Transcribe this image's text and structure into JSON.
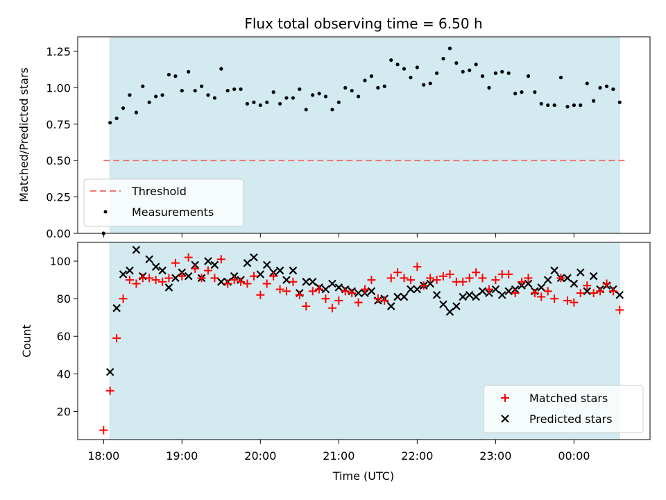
{
  "chart_data": [
    {
      "type": "scatter",
      "title": "Flux total observing time = 6.50 h",
      "ylabel": "Matched/Predicted stars",
      "xlabel": "",
      "x_unit": "hours since 18:00 UTC",
      "xlim": [
        -0.33,
        6.97
      ],
      "ylim": [
        0.0,
        1.35
      ],
      "y_ticks": [
        "0.00",
        "0.25",
        "0.50",
        "0.75",
        "1.00",
        "1.25"
      ],
      "shaded_region": [
        0.08,
        6.58
      ],
      "shade_color": "#d3eaf0",
      "threshold": {
        "name": "Threshold",
        "value": 0.5,
        "color": "#f07575"
      },
      "legend_position": "lower-left",
      "series": [
        {
          "name": "Measurements",
          "color": "#000000",
          "x": [
            0.0,
            0.083,
            0.167,
            0.25,
            0.333,
            0.417,
            0.5,
            0.583,
            0.667,
            0.75,
            0.833,
            0.917,
            1.0,
            1.083,
            1.167,
            1.25,
            1.333,
            1.417,
            1.5,
            1.583,
            1.667,
            1.75,
            1.833,
            1.917,
            2.0,
            2.083,
            2.167,
            2.25,
            2.333,
            2.417,
            2.5,
            2.583,
            2.667,
            2.75,
            2.833,
            2.917,
            3.0,
            3.083,
            3.167,
            3.25,
            3.333,
            3.417,
            3.5,
            3.583,
            3.667,
            3.75,
            3.833,
            3.917,
            4.0,
            4.083,
            4.167,
            4.25,
            4.333,
            4.417,
            4.5,
            4.583,
            4.667,
            4.75,
            4.833,
            4.917,
            5.0,
            5.083,
            5.167,
            5.25,
            5.333,
            5.417,
            5.5,
            5.583,
            5.667,
            5.75,
            5.833,
            5.917,
            6.0,
            6.083,
            6.167,
            6.25,
            6.333,
            6.417,
            6.5,
            6.583
          ],
          "y": [
            0.0,
            0.76,
            0.79,
            0.86,
            0.95,
            0.83,
            1.01,
            0.9,
            0.94,
            0.95,
            1.09,
            1.08,
            0.98,
            1.11,
            0.98,
            1.01,
            0.95,
            0.93,
            1.13,
            0.98,
            0.99,
            0.99,
            0.89,
            0.9,
            0.88,
            0.9,
            0.97,
            0.89,
            0.93,
            0.93,
            0.99,
            0.85,
            0.95,
            0.96,
            0.94,
            0.85,
            0.9,
            1.0,
            0.98,
            0.94,
            1.05,
            1.08,
            1.0,
            1.01,
            1.19,
            1.16,
            1.13,
            1.07,
            1.14,
            1.02,
            1.03,
            1.1,
            1.2,
            1.27,
            1.17,
            1.11,
            1.12,
            1.16,
            1.08,
            1.0,
            1.1,
            1.11,
            1.1,
            0.96,
            0.97,
            1.08,
            0.97,
            0.89,
            0.88,
            0.88,
            1.07,
            0.87,
            0.88,
            0.88,
            1.03,
            0.91,
            1.0,
            1.01,
            0.99,
            0.9
          ]
        }
      ]
    },
    {
      "type": "scatter",
      "title": "",
      "ylabel": "Count",
      "xlabel": "Time (UTC)",
      "x_unit": "hours since 18:00 UTC",
      "xlim": [
        -0.33,
        6.97
      ],
      "ylim": [
        5,
        110
      ],
      "y_ticks": [
        "20",
        "40",
        "60",
        "80",
        "100"
      ],
      "x_ticks": [
        "18:00",
        "19:00",
        "20:00",
        "21:00",
        "22:00",
        "23:00",
        "00:00"
      ],
      "shaded_region": [
        0.08,
        6.58
      ],
      "shade_color": "#d3eaf0",
      "legend_position": "lower-right",
      "series": [
        {
          "name": "Matched stars",
          "marker": "plus",
          "color": "#ff0000",
          "x": [
            0.0,
            0.083,
            0.167,
            0.25,
            0.333,
            0.417,
            0.5,
            0.583,
            0.667,
            0.75,
            0.833,
            0.917,
            1.0,
            1.083,
            1.167,
            1.25,
            1.333,
            1.417,
            1.5,
            1.583,
            1.667,
            1.75,
            1.833,
            1.917,
            2.0,
            2.083,
            2.167,
            2.25,
            2.333,
            2.417,
            2.5,
            2.583,
            2.667,
            2.75,
            2.833,
            2.917,
            3.0,
            3.083,
            3.167,
            3.25,
            3.333,
            3.417,
            3.5,
            3.583,
            3.667,
            3.75,
            3.833,
            3.917,
            4.0,
            4.083,
            4.167,
            4.25,
            4.333,
            4.417,
            4.5,
            4.583,
            4.667,
            4.75,
            4.833,
            4.917,
            5.0,
            5.083,
            5.167,
            5.25,
            5.333,
            5.417,
            5.5,
            5.583,
            5.667,
            5.75,
            5.833,
            5.917,
            6.0,
            6.083,
            6.167,
            6.25,
            6.333,
            6.417,
            6.5,
            6.583
          ],
          "y": [
            10,
            31,
            59,
            80,
            90,
            88,
            91,
            91,
            90,
            89,
            91,
            99,
            92,
            102,
            96,
            91,
            95,
            91,
            101,
            88,
            90,
            89,
            88,
            92,
            82,
            88,
            92,
            85,
            84,
            89,
            82,
            76,
            84,
            85,
            80,
            75,
            79,
            84,
            83,
            78,
            85,
            90,
            80,
            79,
            91,
            94,
            91,
            90,
            97,
            87,
            91,
            90,
            92,
            93,
            89,
            89,
            91,
            94,
            91,
            85,
            90,
            93,
            93,
            83,
            89,
            91,
            83,
            81,
            84,
            80,
            91,
            79,
            78,
            83,
            87,
            83,
            84,
            88,
            84,
            74
          ]
        },
        {
          "name": "Predicted stars",
          "marker": "x",
          "color": "#000000",
          "x": [
            0.0,
            0.083,
            0.167,
            0.25,
            0.333,
            0.417,
            0.5,
            0.583,
            0.667,
            0.75,
            0.833,
            0.917,
            1.0,
            1.083,
            1.167,
            1.25,
            1.333,
            1.417,
            1.5,
            1.583,
            1.667,
            1.75,
            1.833,
            1.917,
            2.0,
            2.083,
            2.167,
            2.25,
            2.333,
            2.417,
            2.5,
            2.583,
            2.667,
            2.75,
            2.833,
            2.917,
            3.0,
            3.083,
            3.167,
            3.25,
            3.333,
            3.417,
            3.5,
            3.583,
            3.667,
            3.75,
            3.833,
            3.917,
            4.0,
            4.083,
            4.167,
            4.25,
            4.333,
            4.417,
            4.5,
            4.583,
            4.667,
            4.75,
            4.833,
            4.917,
            5.0,
            5.083,
            5.167,
            5.25,
            5.333,
            5.417,
            5.5,
            5.583,
            5.667,
            5.75,
            5.833,
            5.917,
            6.0,
            6.083,
            6.167,
            6.25,
            6.333,
            6.417,
            6.5,
            6.583
          ],
          "y": [
            null,
            41,
            75,
            93,
            95,
            106,
            92,
            101,
            97,
            95,
            86,
            91,
            94,
            92,
            98,
            91,
            100,
            98,
            89,
            89,
            92,
            90,
            99,
            102,
            93,
            98,
            94,
            95,
            90,
            95,
            83,
            89,
            89,
            86,
            85,
            88,
            86,
            85,
            84,
            83,
            83,
            84,
            79,
            80,
            76,
            81,
            81,
            85,
            85,
            87,
            88,
            82,
            77,
            73,
            76,
            81,
            82,
            81,
            84,
            83,
            85,
            82,
            84,
            85,
            87,
            88,
            84,
            86,
            90,
            95,
            91,
            91,
            88,
            94,
            84,
            92,
            85,
            87,
            85,
            82
          ]
        }
      ]
    }
  ]
}
